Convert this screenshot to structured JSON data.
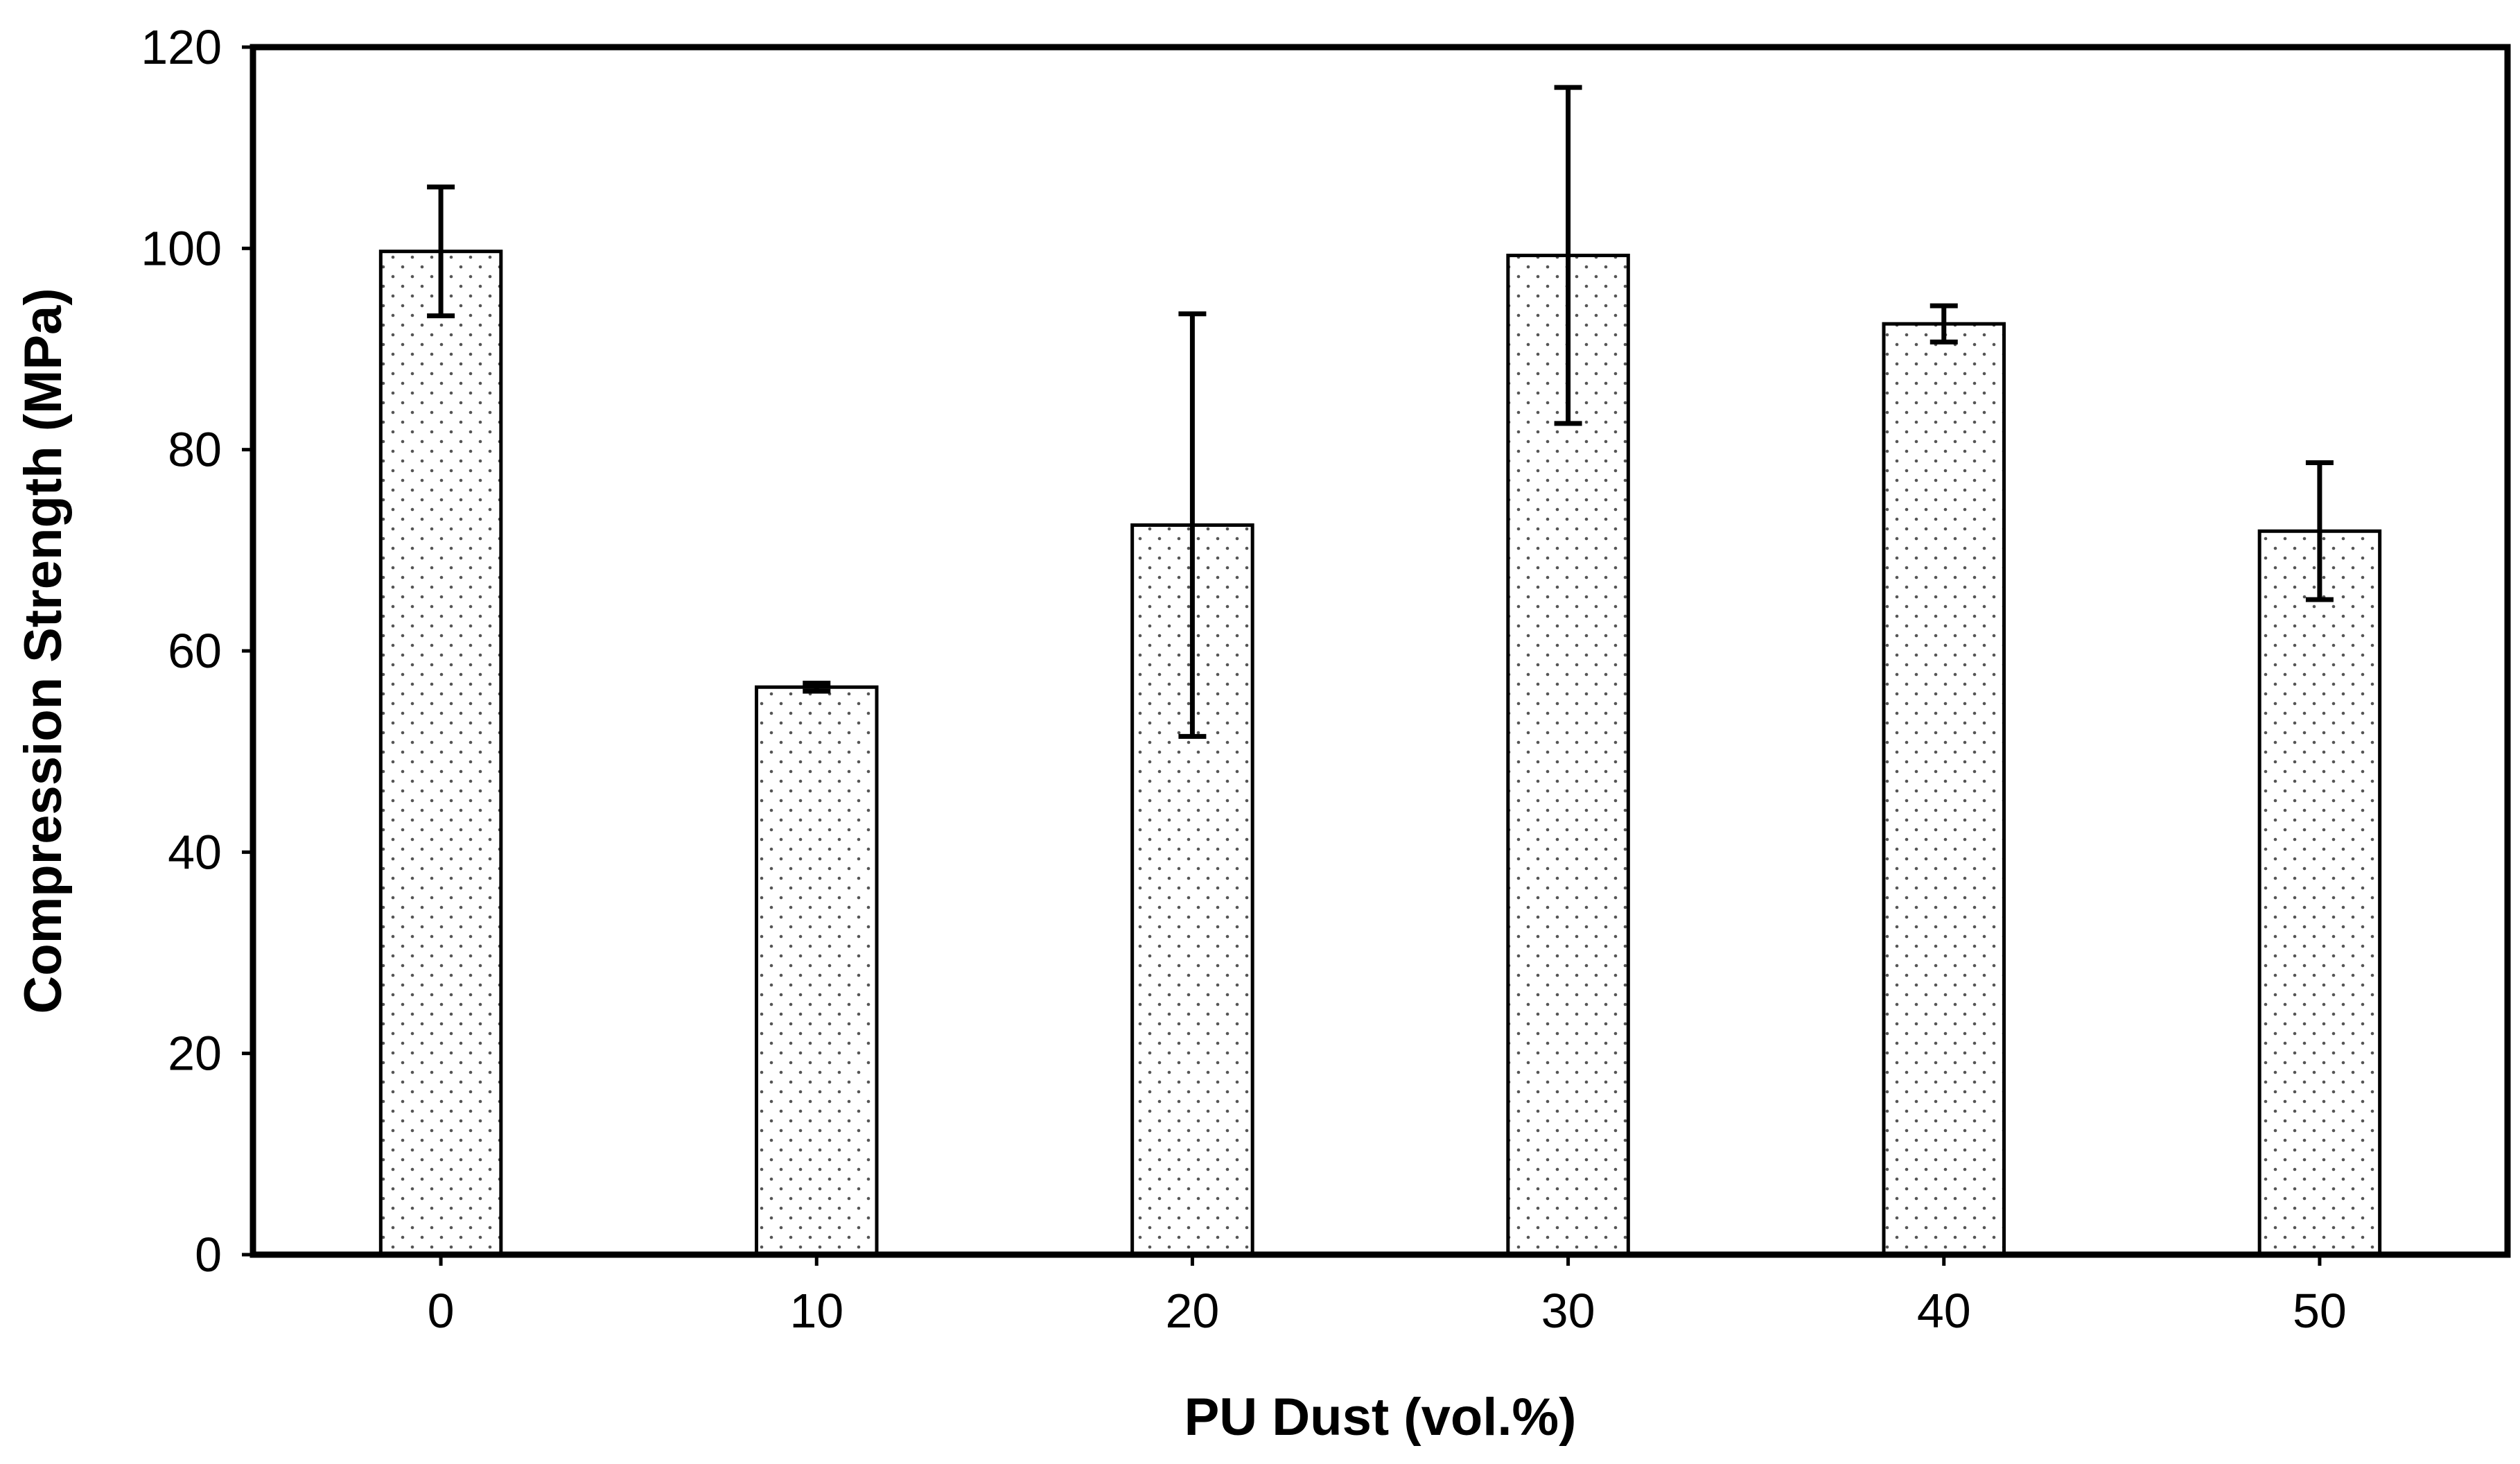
{
  "chart_data": {
    "type": "bar",
    "xlabel": "PU Dust (vol.%)",
    "ylabel": "Compression Strength (MPa)",
    "categories": [
      "0",
      "10",
      "20",
      "30",
      "40",
      "50"
    ],
    "values": [
      99.7,
      56.4,
      72.5,
      99.3,
      92.5,
      71.9
    ],
    "error_low": [
      93.3,
      56.0,
      51.5,
      82.6,
      90.7,
      65.1
    ],
    "error_high": [
      106.1,
      56.8,
      93.5,
      116.0,
      94.3,
      78.7
    ],
    "ylim": [
      0,
      120
    ],
    "yticks": [
      "0",
      "20",
      "40",
      "60",
      "80",
      "100",
      "120"
    ],
    "bar_fill": "dotted",
    "grid": false,
    "legend": "none"
  }
}
